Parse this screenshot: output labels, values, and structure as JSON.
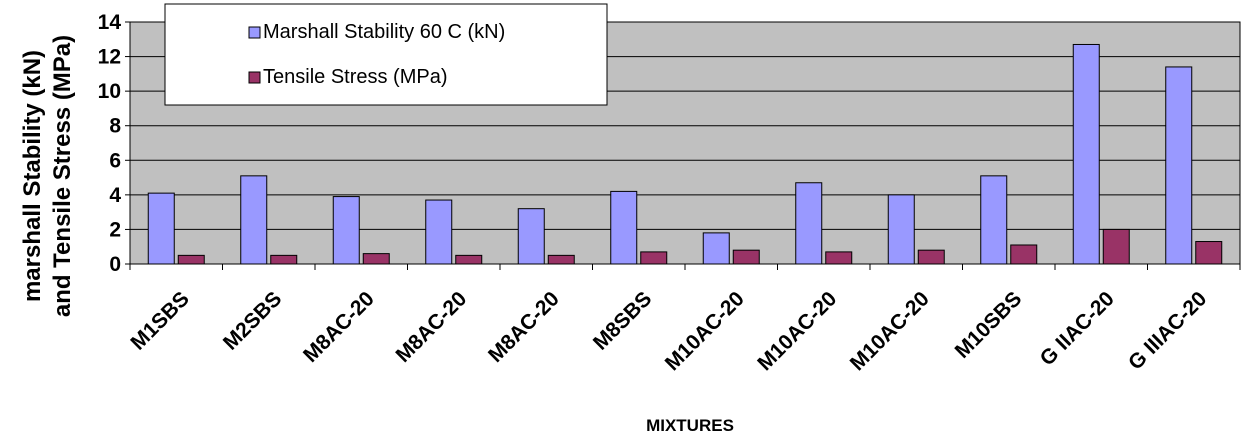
{
  "chart_data": {
    "type": "bar",
    "categories": [
      "M1SBS",
      "M2SBS",
      "M8AC-20",
      "M8AC-20",
      "M8AC-20",
      "M8SBS",
      "M10AC-20",
      "M10AC-20",
      "M10AC-20",
      "M10SBS",
      "G IIAC-20",
      "G IIIAC-20"
    ],
    "series": [
      {
        "name": "Marshall Stability 60 C (kN)",
        "color": "#9999FF",
        "values": [
          4.1,
          5.1,
          3.9,
          3.7,
          3.2,
          4.2,
          1.8,
          4.7,
          4.0,
          5.1,
          12.7,
          11.4
        ]
      },
      {
        "name": "Tensile Stress (MPa)",
        "color": "#993366",
        "values": [
          0.5,
          0.5,
          0.6,
          0.5,
          0.5,
          0.7,
          0.8,
          0.7,
          0.8,
          1.1,
          2.0,
          1.3
        ]
      }
    ],
    "xlabel": "MIXTURES",
    "ylabel": [
      "marshall Stability (kN)",
      "and Tensile Stress (MPa)"
    ],
    "ylim": [
      0,
      14
    ],
    "yticks": [
      "0",
      "2",
      "4",
      "6",
      "8",
      "10",
      "12",
      "14"
    ],
    "grid": true,
    "plot_background": "#C0C0C0",
    "legend_position": "top-left"
  }
}
